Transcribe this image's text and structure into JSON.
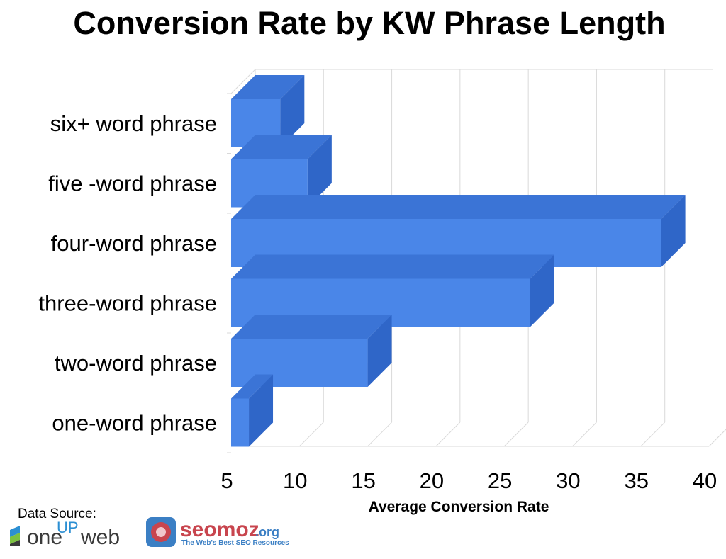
{
  "chart_data": {
    "type": "bar",
    "orientation": "horizontal",
    "title": "Conversion Rate by KW Phrase Length",
    "xlabel": "Average Conversion Rate",
    "ylabel": "",
    "xlim": [
      5,
      40
    ],
    "xticks": [
      5,
      10,
      15,
      20,
      25,
      30,
      35,
      40
    ],
    "categories": [
      "six+ word phrase",
      "five -word phrase",
      "four-word phrase",
      "three-word phrase",
      "two-word phrase",
      "one-word phrase"
    ],
    "values": [
      8.6,
      10.6,
      36.5,
      26.9,
      15.0,
      6.3
    ],
    "grid": true,
    "legend": "none",
    "bar_color": "#4a86e8",
    "bar_top_color": "#3b74d6",
    "bar_side_color": "#2f66c8"
  },
  "footer": {
    "source_label": "Data Source:",
    "logos": [
      {
        "name": "oneupweb-logo",
        "text_a": "one",
        "text_b": "UP",
        "text_c": "web"
      },
      {
        "name": "seomoz-logo",
        "text_a": "seomoz",
        "text_b": ".org",
        "tagline": "The Web's Best SEO Resources"
      }
    ]
  }
}
